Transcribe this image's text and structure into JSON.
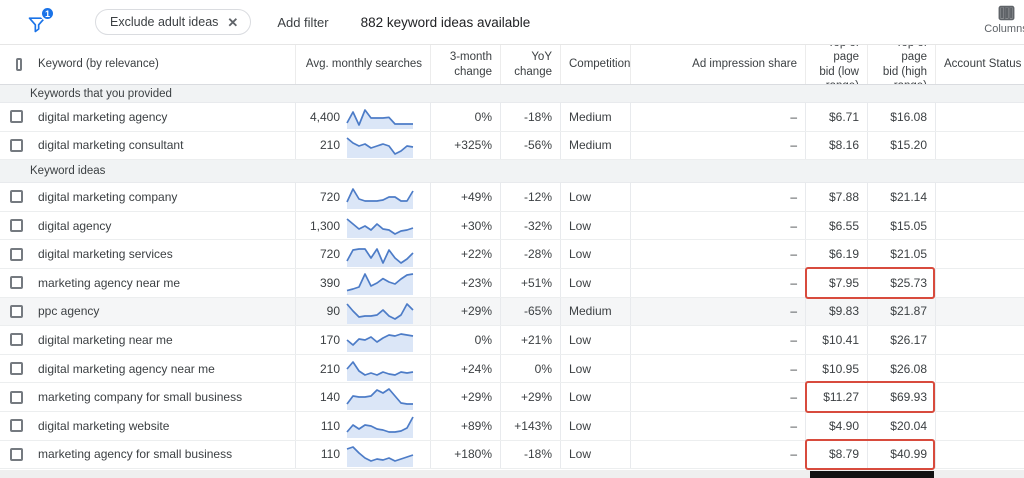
{
  "toolbar": {
    "filter_badge": "1",
    "chip_label": "Exclude adult ideas",
    "chip_close": "✕",
    "add_filter_label": "Add filter",
    "count_text": "882 keyword ideas available",
    "columns_label": "Columns"
  },
  "colors": {
    "accent_blue": "#1a73e8",
    "spark_line": "#4d7cc7",
    "spark_fill": "#dbe6f7",
    "highlight_red": "#d84b3d"
  },
  "table": {
    "headers": {
      "keyword": "Keyword (by relevance)",
      "searches": "Avg. monthly searches",
      "three_month": "3-month\nchange",
      "yoy": "YoY\nchange",
      "competition": "Competition",
      "ad_share": "Ad impression share",
      "bid_low": "Top of page\nbid (low\nrange)",
      "bid_high": "Top of page\nbid (high\nrange)",
      "account": "Account Status"
    },
    "groups": [
      {
        "section": "Keywords that you provided",
        "rows": [
          {
            "keyword": "digital marketing agency",
            "searches": "4,400",
            "spark": [
              0.2,
              0.75,
              0.1,
              0.85,
              0.45,
              0.45,
              0.45,
              0.48,
              0.15,
              0.15,
              0.15,
              0.15
            ],
            "three_month": "0%",
            "yoy": "-18%",
            "competition": "Medium",
            "ad_share": "–",
            "bid_low": "$6.71",
            "bid_high": "$16.08",
            "highlighted": false,
            "shaded": false
          },
          {
            "keyword": "digital marketing consultant",
            "searches": "210",
            "spark": [
              0.9,
              0.65,
              0.5,
              0.6,
              0.4,
              0.5,
              0.6,
              0.5,
              0.1,
              0.25,
              0.5,
              0.45
            ],
            "three_month": "+325%",
            "yoy": "-56%",
            "competition": "Medium",
            "ad_share": "–",
            "bid_low": "$8.16",
            "bid_high": "$15.20",
            "highlighted": false,
            "shaded": false
          }
        ]
      },
      {
        "section": "Keyword ideas",
        "rows": [
          {
            "keyword": "digital marketing company",
            "searches": "720",
            "spark": [
              0.25,
              0.9,
              0.4,
              0.3,
              0.3,
              0.3,
              0.35,
              0.5,
              0.5,
              0.3,
              0.3,
              0.8
            ],
            "three_month": "+49%",
            "yoy": "-12%",
            "competition": "Low",
            "ad_share": "–",
            "bid_low": "$7.88",
            "bid_high": "$21.14",
            "highlighted": false,
            "shaded": false
          },
          {
            "keyword": "digital agency",
            "searches": "1,300",
            "spark": [
              0.85,
              0.6,
              0.35,
              0.5,
              0.3,
              0.6,
              0.35,
              0.3,
              0.1,
              0.25,
              0.3,
              0.4
            ],
            "three_month": "+30%",
            "yoy": "-32%",
            "competition": "Low",
            "ad_share": "–",
            "bid_low": "$6.55",
            "bid_high": "$15.05",
            "highlighted": false,
            "shaded": false
          },
          {
            "keyword": "digital marketing services",
            "searches": "720",
            "spark": [
              0.2,
              0.75,
              0.8,
              0.8,
              0.35,
              0.8,
              0.1,
              0.75,
              0.35,
              0.1,
              0.3,
              0.6
            ],
            "three_month": "+22%",
            "yoy": "-28%",
            "competition": "Low",
            "ad_share": "–",
            "bid_low": "$6.19",
            "bid_high": "$21.05",
            "highlighted": false,
            "shaded": false
          },
          {
            "keyword": "marketing agency near me",
            "searches": "390",
            "spark": [
              0.12,
              0.2,
              0.3,
              0.95,
              0.35,
              0.5,
              0.72,
              0.55,
              0.45,
              0.7,
              0.9,
              0.95
            ],
            "three_month": "+23%",
            "yoy": "+51%",
            "competition": "Low",
            "ad_share": "–",
            "bid_low": "$7.95",
            "bid_high": "$25.73",
            "highlighted": true,
            "shaded": false
          },
          {
            "keyword": "ppc agency",
            "searches": "90",
            "spark": [
              0.9,
              0.55,
              0.25,
              0.3,
              0.3,
              0.35,
              0.6,
              0.3,
              0.15,
              0.35,
              0.9,
              0.6
            ],
            "three_month": "+29%",
            "yoy": "-65%",
            "competition": "Medium",
            "ad_share": "–",
            "bid_low": "$9.83",
            "bid_high": "$21.87",
            "highlighted": false,
            "shaded": true
          },
          {
            "keyword": "digital marketing near me",
            "searches": "170",
            "spark": [
              0.5,
              0.25,
              0.55,
              0.5,
              0.65,
              0.4,
              0.6,
              0.75,
              0.7,
              0.8,
              0.75,
              0.7
            ],
            "three_month": "0%",
            "yoy": "+21%",
            "competition": "Low",
            "ad_share": "–",
            "bid_low": "$10.41",
            "bid_high": "$26.17",
            "highlighted": false,
            "shaded": false
          },
          {
            "keyword": "digital marketing agency near me",
            "searches": "210",
            "spark": [
              0.5,
              0.85,
              0.4,
              0.2,
              0.3,
              0.2,
              0.35,
              0.25,
              0.2,
              0.35,
              0.3,
              0.35
            ],
            "three_month": "+24%",
            "yoy": "0%",
            "competition": "Low",
            "ad_share": "–",
            "bid_low": "$10.95",
            "bid_high": "$26.08",
            "highlighted": false,
            "shaded": false
          },
          {
            "keyword": "marketing company for small business",
            "searches": "140",
            "spark": [
              0.2,
              0.6,
              0.55,
              0.55,
              0.6,
              0.9,
              0.75,
              0.95,
              0.6,
              0.25,
              0.2,
              0.2
            ],
            "three_month": "+29%",
            "yoy": "+29%",
            "competition": "Low",
            "ad_share": "–",
            "bid_low": "$11.27",
            "bid_high": "$69.93",
            "highlighted": true,
            "shaded": false
          },
          {
            "keyword": "digital marketing website",
            "searches": "110",
            "spark": [
              0.2,
              0.55,
              0.35,
              0.55,
              0.5,
              0.35,
              0.3,
              0.2,
              0.2,
              0.25,
              0.4,
              0.95
            ],
            "three_month": "+89%",
            "yoy": "+143%",
            "competition": "Low",
            "ad_share": "–",
            "bid_low": "$4.90",
            "bid_high": "$20.04",
            "highlighted": false,
            "shaded": false
          },
          {
            "keyword": "marketing agency for small business",
            "searches": "110",
            "spark": [
              0.8,
              0.9,
              0.6,
              0.35,
              0.2,
              0.3,
              0.25,
              0.35,
              0.2,
              0.3,
              0.4,
              0.5
            ],
            "three_month": "+180%",
            "yoy": "-18%",
            "competition": "Low",
            "ad_share": "–",
            "bid_low": "$8.79",
            "bid_high": "$40.99",
            "highlighted": true,
            "shaded": false
          }
        ]
      }
    ]
  }
}
